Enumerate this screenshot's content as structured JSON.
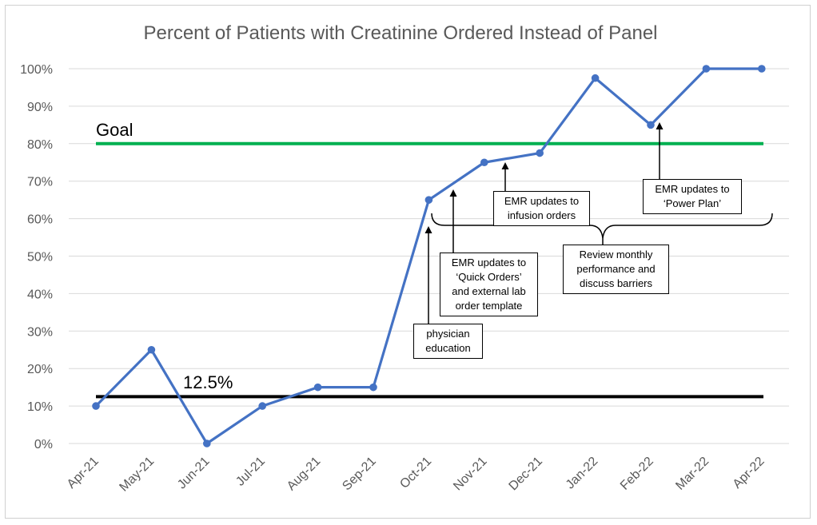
{
  "chart_data": {
    "type": "line",
    "title": "Percent of Patients with Creatinine Ordered Instead of Panel",
    "xlabel": "",
    "ylabel": "",
    "categories": [
      "Apr-21",
      "May-21",
      "Jun-21",
      "Jul-21",
      "Aug-21",
      "Sep-21",
      "Oct-21",
      "Nov-21",
      "Dec-21",
      "Jan-22",
      "Feb-22",
      "Mar-22",
      "Apr-22"
    ],
    "series": [
      {
        "values": [
          10,
          25,
          0,
          10,
          15,
          15,
          65,
          75,
          77.5,
          97.5,
          85,
          100,
          100
        ],
        "color": "#4472c4"
      }
    ],
    "ylim": [
      0,
      100
    ],
    "yticks": [
      "0%",
      "10%",
      "20%",
      "30%",
      "40%",
      "50%",
      "60%",
      "70%",
      "80%",
      "90%",
      "100%"
    ],
    "grid": true,
    "reference_lines": [
      {
        "label": "Goal",
        "value": 80,
        "color": "#00b050"
      },
      {
        "label": "12.5%",
        "value": 12.5,
        "color": "#000000"
      }
    ],
    "annotations": [
      {
        "text": "physician\neducation",
        "at": "Oct-21"
      },
      {
        "text": "EMR updates to\n‘Quick Orders’\nand external lab\norder template",
        "at": "Oct-21"
      },
      {
        "text": "EMR updates to\ninfusion orders",
        "at": "Nov-21"
      },
      {
        "text": "Review monthly\nperformance and\ndiscuss barriers",
        "at": "Oct-21 to Apr-22"
      },
      {
        "text": "EMR updates to\n‘Power Plan’",
        "at": "Feb-22"
      }
    ]
  }
}
